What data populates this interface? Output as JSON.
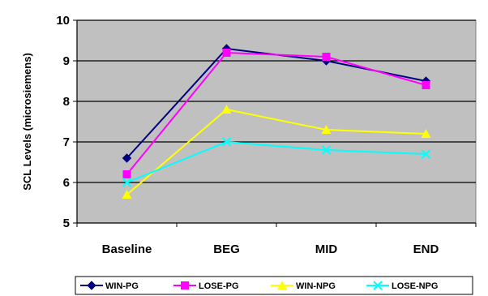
{
  "chart_data": {
    "type": "line",
    "title": "",
    "xlabel": "",
    "ylabel": "SCL Levels (microsiemens)",
    "categories": [
      "Baseline",
      "BEG",
      "MID",
      "END"
    ],
    "ylim": [
      5,
      10
    ],
    "yticks": [
      5,
      6,
      7,
      8,
      9,
      10
    ],
    "grid": true,
    "legend": "bottom",
    "plot_background": "#c0c0c0",
    "series": [
      {
        "name": "WIN-PG",
        "values": [
          6.6,
          9.3,
          9.0,
          8.5
        ],
        "color": "#000080",
        "marker": "diamond"
      },
      {
        "name": "LOSE-PG",
        "values": [
          6.2,
          9.2,
          9.1,
          8.4
        ],
        "color": "#ff00ff",
        "marker": "square"
      },
      {
        "name": "WIN-NPG",
        "values": [
          5.7,
          7.8,
          7.3,
          7.2
        ],
        "color": "#ffff00",
        "marker": "triangle"
      },
      {
        "name": "LOSE-NPG",
        "values": [
          6.0,
          7.0,
          6.8,
          6.7
        ],
        "color": "#00ffff",
        "marker": "x"
      }
    ]
  }
}
